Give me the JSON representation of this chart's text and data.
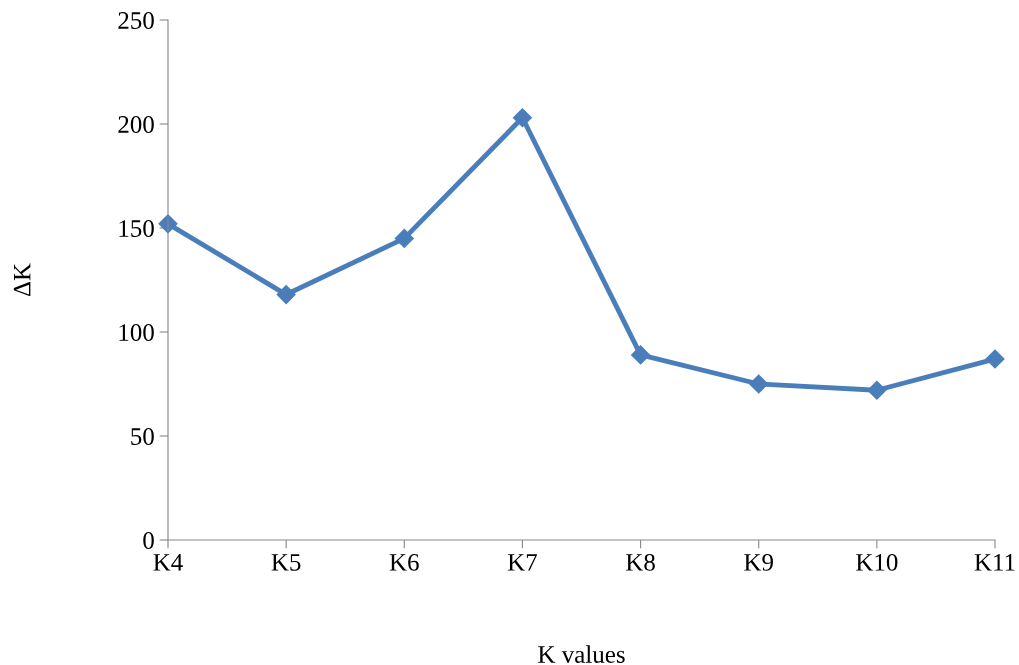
{
  "chart_data": {
    "type": "line",
    "xlabel": "K values",
    "ylabel": "ΔK",
    "categories": [
      "K4",
      "K5",
      "K6",
      "K7",
      "K8",
      "K9",
      "K10",
      "K11"
    ],
    "series": [
      {
        "color": "#4a7ebb",
        "values": [
          152,
          118,
          145,
          203,
          89,
          75,
          72,
          87
        ]
      }
    ],
    "ylim": [
      0,
      250
    ],
    "yticks": [
      0,
      50,
      100,
      150,
      200,
      250
    ],
    "marker": "diamond",
    "line_style": "solid",
    "grid": false,
    "legend": false
  }
}
